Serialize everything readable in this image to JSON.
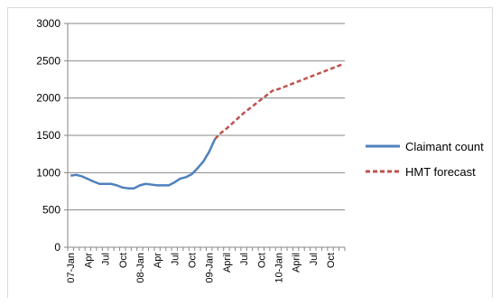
{
  "chart_data": {
    "type": "line",
    "title": "",
    "xlabel": "",
    "ylabel": "",
    "ylim": [
      0,
      3000
    ],
    "yticks": [
      0,
      500,
      1000,
      1500,
      2000,
      2500,
      3000
    ],
    "grid": "horizontal",
    "legend_position": "right",
    "x_tick_labels": [
      "07-Jan",
      "Apr",
      "Jul",
      "Oct",
      "08-Jan",
      "Apr",
      "Jul",
      "Oct",
      "09-Jan",
      "April",
      "Jul",
      "Oct",
      "10-Jan",
      "April",
      "Jul",
      "Oct"
    ],
    "x_months": [
      "Jan 2007",
      "Feb 2007",
      "Mar 2007",
      "Apr 2007",
      "May 2007",
      "Jun 2007",
      "Jul 2007",
      "Aug 2007",
      "Sep 2007",
      "Oct 2007",
      "Nov 2007",
      "Dec 2007",
      "Jan 2008",
      "Feb 2008",
      "Mar 2008",
      "Apr 2008",
      "May 2008",
      "Jun 2008",
      "Jul 2008",
      "Aug 2008",
      "Sep 2008",
      "Oct 2008",
      "Nov 2008",
      "Dec 2008",
      "Jan 2009",
      "Feb 2009",
      "Mar 2009",
      "Apr 2009",
      "May 2009",
      "Jun 2009",
      "Jul 2009",
      "Aug 2009",
      "Sep 2009",
      "Oct 2009",
      "Nov 2009",
      "Dec 2009",
      "Jan 2010",
      "Feb 2010",
      "Mar 2010",
      "Apr 2010",
      "May 2010",
      "Jun 2010",
      "Jul 2010",
      "Aug 2010",
      "Sep 2010",
      "Oct 2010",
      "Nov 2010",
      "Dec 2010"
    ],
    "series": [
      {
        "name": "Claimant count",
        "color": "#4f81bd",
        "style": "solid",
        "start": "Jan 2007",
        "values": [
          960,
          970,
          950,
          915,
          880,
          850,
          850,
          850,
          830,
          800,
          790,
          790,
          830,
          850,
          840,
          830,
          830,
          830,
          870,
          920,
          940,
          980,
          1060,
          1150,
          1280,
          1450
        ]
      },
      {
        "name": "HMT forecast",
        "color": "#c0504d",
        "style": "dashed",
        "start": "Feb 2009",
        "values": [
          1450,
          1530,
          1590,
          1660,
          1730,
          1800,
          1860,
          1920,
          1980,
          2040,
          2100,
          2120,
          2150,
          2180,
          2210,
          2240,
          2270,
          2300,
          2330,
          2360,
          2390,
          2420,
          2450
        ]
      }
    ]
  }
}
